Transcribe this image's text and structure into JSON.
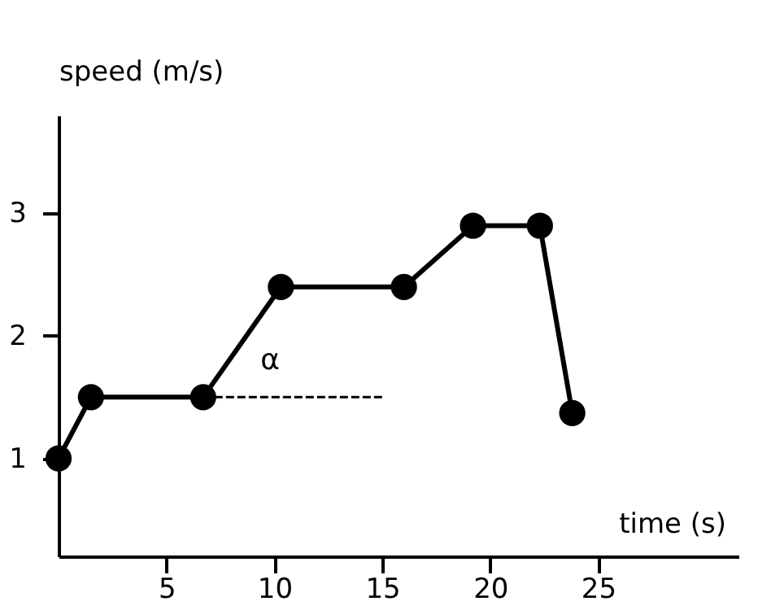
{
  "chart_data": {
    "type": "line",
    "xlabel": "time (s)",
    "ylabel": "speed (m/s)",
    "xlim": [
      0,
      31.5
    ],
    "xticks": [
      5,
      10,
      15,
      20,
      25
    ],
    "ylim": [
      0.2,
      3.8
    ],
    "yticks": [
      1,
      2,
      3
    ],
    "grid": false,
    "marker": "circle",
    "series": [
      {
        "color": "#000000",
        "x": [
          0,
          1.5,
          6.7,
          10.3,
          16,
          19.2,
          22.3,
          23.8
        ],
        "values": [
          1,
          1.5,
          1.5,
          2.4,
          2.4,
          2.9,
          2.9,
          1.37
        ]
      },
      {
        "type": "line",
        "color": "#000000",
        "line_style": "dashed",
        "marker": "none",
        "x": [
          6.7,
          15
        ],
        "values": [
          1.5,
          1.5
        ]
      }
    ],
    "annotations": [
      "α"
    ]
  }
}
